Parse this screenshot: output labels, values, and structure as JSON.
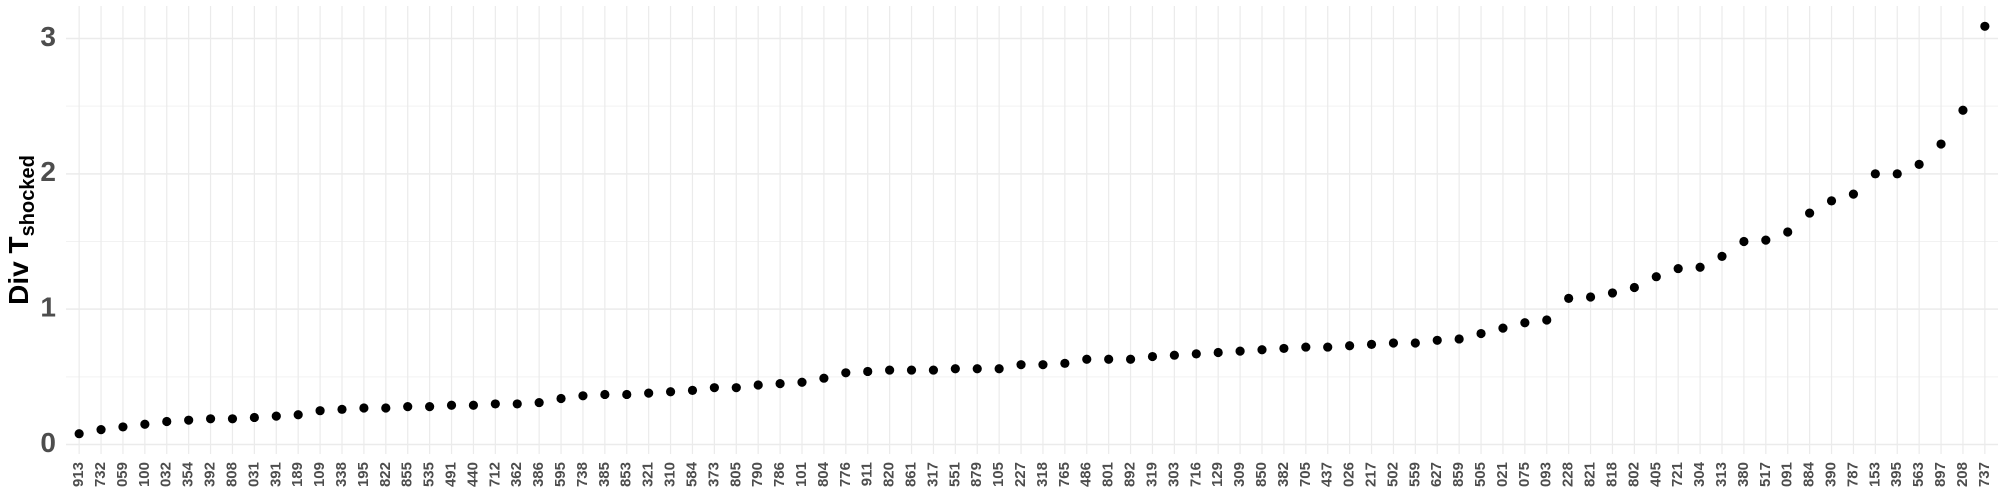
{
  "chart_data": {
    "type": "scatter",
    "y_label": "Div T",
    "y_label_sub": "shocked",
    "categories": [
      "913",
      "732",
      "059",
      "100",
      "032",
      "354",
      "392",
      "808",
      "031",
      "391",
      "189",
      "109",
      "338",
      "195",
      "822",
      "855",
      "535",
      "491",
      "440",
      "712",
      "362",
      "386",
      "595",
      "738",
      "385",
      "853",
      "321",
      "310",
      "584",
      "373",
      "805",
      "790",
      "786",
      "101",
      "804",
      "776",
      "911",
      "820",
      "861",
      "317",
      "551",
      "879",
      "105",
      "227",
      "318",
      "765",
      "486",
      "801",
      "892",
      "319",
      "303",
      "716",
      "129",
      "309",
      "850",
      "382",
      "705",
      "437",
      "026",
      "217",
      "502",
      "559",
      "627",
      "859",
      "505",
      "021",
      "075",
      "093",
      "228",
      "821",
      "818",
      "802",
      "405",
      "721",
      "304",
      "313",
      "380",
      "517",
      "091",
      "884",
      "390",
      "787",
      "153",
      "395",
      "563",
      "897",
      "208",
      "737"
    ],
    "values": [
      0.08,
      0.11,
      0.13,
      0.15,
      0.17,
      0.18,
      0.19,
      0.19,
      0.2,
      0.21,
      0.22,
      0.25,
      0.26,
      0.27,
      0.27,
      0.28,
      0.28,
      0.29,
      0.29,
      0.3,
      0.3,
      0.31,
      0.34,
      0.36,
      0.37,
      0.37,
      0.38,
      0.39,
      0.4,
      0.42,
      0.42,
      0.44,
      0.45,
      0.46,
      0.49,
      0.53,
      0.54,
      0.55,
      0.55,
      0.55,
      0.56,
      0.56,
      0.56,
      0.59,
      0.59,
      0.6,
      0.63,
      0.63,
      0.63,
      0.65,
      0.66,
      0.67,
      0.68,
      0.69,
      0.7,
      0.71,
      0.72,
      0.72,
      0.73,
      0.74,
      0.75,
      0.75,
      0.77,
      0.78,
      0.82,
      0.86,
      0.9,
      0.92,
      1.08,
      1.09,
      1.12,
      1.16,
      1.24,
      1.3,
      1.31,
      1.39,
      1.5,
      1.51,
      1.57,
      1.71,
      1.8,
      1.85,
      2.0,
      2.0,
      2.07,
      2.22,
      2.47,
      3.09
    ],
    "color": "#000000",
    "ylim": [
      -0.07,
      3.24
    ],
    "yticks": [
      0,
      1,
      2,
      3
    ],
    "grid": true
  }
}
